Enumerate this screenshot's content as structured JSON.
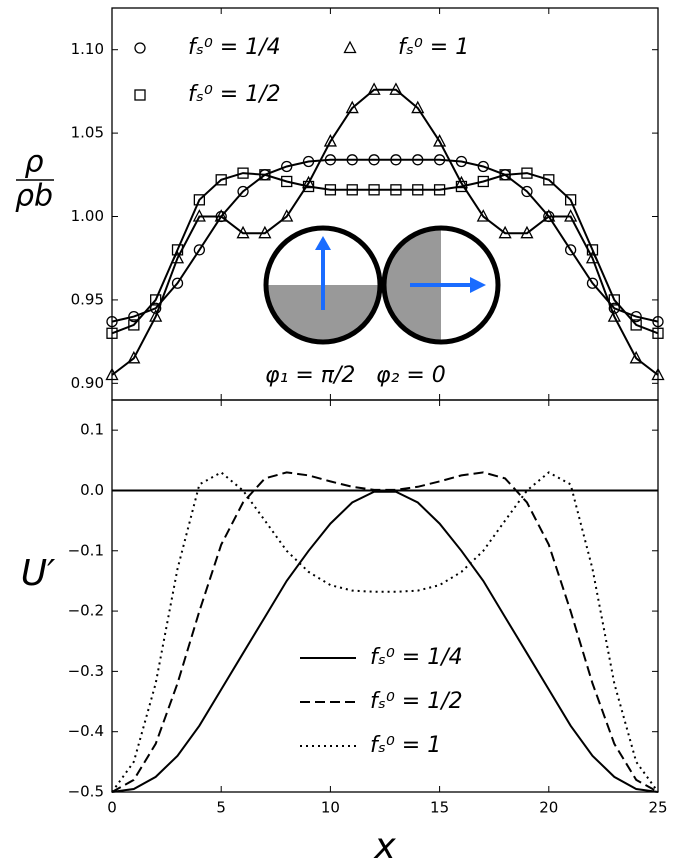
{
  "chart_data": [
    {
      "type": "line",
      "ylabel": {
        "numerator": "ρ",
        "denominator": "ρb"
      },
      "x": [
        0,
        1,
        2,
        3,
        4,
        5,
        6,
        7,
        8,
        9,
        10,
        11,
        12,
        13,
        14,
        15,
        16,
        17,
        18,
        19,
        20,
        21,
        22,
        23,
        24,
        25
      ],
      "xlim": [
        0,
        25
      ],
      "xticks": [
        0,
        5,
        10,
        15,
        20,
        25
      ],
      "ylim": [
        0.89,
        1.125
      ],
      "yticks": [
        {
          "value": 0.9,
          "label": "0.90"
        },
        0.95,
        {
          "value": 1.0,
          "label": "1.00"
        },
        1.05,
        {
          "value": 1.1,
          "label": "1.10"
        }
      ],
      "series": [
        {
          "name": "fₛ⁰ = 1/4",
          "marker": "o",
          "color": "#000000",
          "values": [
            0.937,
            0.94,
            0.945,
            0.96,
            0.98,
            1.0,
            1.015,
            1.025,
            1.03,
            1.033,
            1.034,
            1.034,
            1.034,
            1.034,
            1.034,
            1.034,
            1.033,
            1.03,
            1.025,
            1.015,
            1.0,
            0.98,
            0.96,
            0.945,
            0.94,
            0.937
          ]
        },
        {
          "name": "fₛ⁰ = 1/2",
          "marker": "s",
          "color": "#000000",
          "values": [
            0.93,
            0.935,
            0.95,
            0.98,
            1.01,
            1.022,
            1.026,
            1.025,
            1.021,
            1.018,
            1.016,
            1.016,
            1.016,
            1.016,
            1.016,
            1.016,
            1.018,
            1.021,
            1.025,
            1.026,
            1.022,
            1.01,
            0.98,
            0.95,
            0.935,
            0.93
          ]
        },
        {
          "name": "fₛ⁰ = 1",
          "marker": "^",
          "color": "#000000",
          "values": [
            0.905,
            0.915,
            0.94,
            0.975,
            1.0,
            1.0,
            0.99,
            0.99,
            1.0,
            1.02,
            1.045,
            1.065,
            1.076,
            1.076,
            1.065,
            1.045,
            1.02,
            1.0,
            0.99,
            0.99,
            1.0,
            1.0,
            0.975,
            0.94,
            0.915,
            0.905
          ]
        }
      ],
      "annotations": [
        "φ₁ = π/2",
        "φ₂ = 0"
      ]
    },
    {
      "type": "line",
      "ylabel": "U′",
      "xlabel": "x",
      "x": [
        0,
        1,
        2,
        3,
        4,
        5,
        6,
        7,
        8,
        9,
        10,
        11,
        12,
        13,
        14,
        15,
        16,
        17,
        18,
        19,
        20,
        21,
        22,
        23,
        24,
        25
      ],
      "xlim": [
        0,
        25
      ],
      "xticks": [
        0,
        5,
        10,
        15,
        20,
        25
      ],
      "ylim": [
        -0.5,
        0.15
      ],
      "yticks": [
        {
          "value": -0.5,
          "label": "−0.5"
        },
        {
          "value": -0.4,
          "label": "−0.4"
        },
        {
          "value": -0.3,
          "label": "−0.3"
        },
        {
          "value": -0.2,
          "label": "−0.2"
        },
        {
          "value": -0.1,
          "label": "−0.1"
        },
        {
          "value": 0,
          "label": "0.0"
        },
        0.1
      ],
      "hline": 0,
      "series": [
        {
          "name": "fₛ⁰ = 1/4",
          "linestyle": "solid",
          "color": "#000000",
          "values": [
            -0.5,
            -0.495,
            -0.475,
            -0.44,
            -0.39,
            -0.33,
            -0.27,
            -0.21,
            -0.15,
            -0.1,
            -0.055,
            -0.02,
            -0.002,
            -0.002,
            -0.02,
            -0.055,
            -0.1,
            -0.15,
            -0.21,
            -0.27,
            -0.33,
            -0.39,
            -0.44,
            -0.475,
            -0.495,
            -0.5
          ]
        },
        {
          "name": "fₛ⁰ = 1/2",
          "linestyle": "dashed",
          "color": "#000000",
          "values": [
            -0.5,
            -0.48,
            -0.42,
            -0.32,
            -0.2,
            -0.09,
            -0.02,
            0.02,
            0.03,
            0.025,
            0.015,
            0.006,
            0.001,
            0.001,
            0.006,
            0.015,
            0.025,
            0.03,
            0.02,
            -0.02,
            -0.09,
            -0.2,
            -0.32,
            -0.42,
            -0.48,
            -0.5
          ]
        },
        {
          "name": "fₛ⁰ = 1",
          "linestyle": "dotted",
          "color": "#000000",
          "values": [
            -0.5,
            -0.45,
            -0.32,
            -0.13,
            0.01,
            0.03,
            0.0,
            -0.05,
            -0.1,
            -0.135,
            -0.157,
            -0.166,
            -0.168,
            -0.168,
            -0.166,
            -0.157,
            -0.135,
            -0.1,
            -0.05,
            0.0,
            0.03,
            0.01,
            -0.13,
            -0.32,
            -0.45,
            -0.5
          ]
        }
      ]
    }
  ]
}
